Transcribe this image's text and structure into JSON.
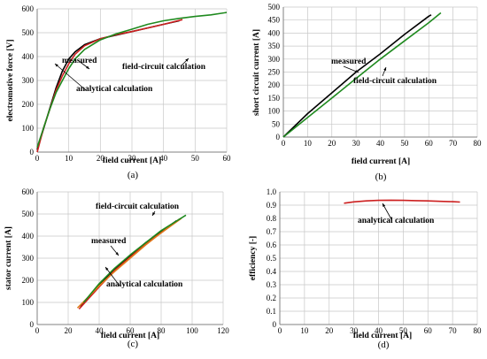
{
  "charts": [
    {
      "id": "a",
      "type": "line",
      "caption": "(a)",
      "xlabel": "field current [A]",
      "ylabel": "electromotive force [V]",
      "xlim": [
        0,
        60
      ],
      "ylim": [
        0,
        600
      ],
      "xticks": [
        0,
        10,
        20,
        30,
        40,
        50,
        60
      ],
      "yticks": [
        0,
        100,
        200,
        300,
        400,
        500,
        600
      ],
      "grid": true,
      "series": [
        {
          "color": "#000000",
          "x": [
            0,
            3,
            6,
            8,
            10,
            12,
            15,
            20,
            25,
            30,
            35,
            40,
            45
          ],
          "y": [
            10,
            140,
            270,
            340,
            390,
            420,
            450,
            475,
            490,
            505,
            520,
            535,
            550
          ]
        },
        {
          "color": "#cc1f1f",
          "x": [
            0,
            2,
            4,
            6,
            8,
            10,
            12,
            15,
            20,
            25,
            30,
            35,
            40,
            46
          ],
          "y": [
            0,
            100,
            180,
            260,
            320,
            370,
            410,
            445,
            475,
            492,
            505,
            520,
            535,
            555
          ]
        },
        {
          "color": "#1f8a1f",
          "x": [
            0,
            2,
            4,
            6,
            8,
            10,
            12,
            15,
            20,
            25,
            30,
            35,
            40,
            45,
            50,
            55,
            60
          ],
          "y": [
            20,
            100,
            180,
            250,
            300,
            350,
            390,
            430,
            470,
            495,
            515,
            535,
            550,
            560,
            568,
            575,
            585
          ]
        }
      ],
      "annotations": [
        {
          "text": "measured"
        },
        {
          "text": "field-circuit  calculation"
        },
        {
          "text": "analytical calculation"
        }
      ]
    },
    {
      "id": "b",
      "type": "line",
      "caption": "(b)",
      "xlabel": "field current [A]",
      "ylabel": "short circuit  current [A]",
      "xlim": [
        0,
        80
      ],
      "ylim": [
        0,
        500
      ],
      "xticks": [
        0,
        10,
        20,
        30,
        40,
        50,
        60,
        70,
        80
      ],
      "yticks": [
        0,
        50,
        100,
        150,
        200,
        250,
        300,
        350,
        400,
        450,
        500
      ],
      "grid": true,
      "series": [
        {
          "color": "#000000",
          "x": [
            0,
            10,
            20,
            30,
            40,
            50,
            60,
            61
          ],
          "y": [
            0,
            90,
            170,
            250,
            320,
            395,
            465,
            470
          ]
        },
        {
          "color": "#1f8a1f",
          "x": [
            0,
            10,
            20,
            30,
            40,
            50,
            60,
            65
          ],
          "y": [
            0,
            75,
            150,
            225,
            300,
            370,
            440,
            478
          ]
        }
      ],
      "annotations": [
        {
          "text": "measured"
        },
        {
          "text": "field-circuit calculation"
        }
      ]
    },
    {
      "id": "c",
      "type": "line",
      "caption": "(c)",
      "xlabel": "field current [A]",
      "ylabel": "stator current [A]",
      "xlim": [
        0,
        120
      ],
      "ylim": [
        0,
        600
      ],
      "xticks": [
        0,
        20,
        40,
        60,
        80,
        100,
        120
      ],
      "yticks": [
        0,
        100,
        200,
        300,
        400,
        500,
        600
      ],
      "grid": true,
      "series": [
        {
          "color": "#000000",
          "x": [
            28,
            40,
            50,
            60,
            70,
            80,
            90
          ],
          "y": [
            80,
            180,
            250,
            310,
            370,
            420,
            470
          ]
        },
        {
          "color": "#cc1f1f",
          "x": [
            27,
            40,
            50,
            60,
            70,
            80,
            92
          ],
          "y": [
            70,
            170,
            245,
            305,
            365,
            415,
            478
          ]
        },
        {
          "color": "#e07a1a",
          "x": [
            26,
            40,
            50,
            60,
            70,
            80,
            93
          ],
          "y": [
            75,
            175,
            240,
            300,
            360,
            415,
            480
          ]
        },
        {
          "color": "#1f8a1f",
          "x": [
            30,
            40,
            50,
            60,
            70,
            80,
            96
          ],
          "y": [
            100,
            185,
            255,
            315,
            370,
            425,
            495
          ]
        }
      ],
      "annotations": [
        {
          "text": "field-circuit  calculation"
        },
        {
          "text": "measured"
        },
        {
          "text": "analytical calculation"
        }
      ]
    },
    {
      "id": "d",
      "type": "line",
      "caption": "(d)",
      "xlabel": "field current [A]",
      "ylabel": "efficiency [-]",
      "xlim": [
        0,
        80
      ],
      "ylim": [
        0,
        1
      ],
      "xticks": [
        0,
        10,
        20,
        30,
        40,
        50,
        60,
        70,
        80
      ],
      "yticks": [
        0,
        0.1,
        0.2,
        0.3,
        0.4,
        0.5,
        0.6,
        0.7,
        0.8,
        0.9,
        1
      ],
      "yticklabels": [
        "0",
        "0.1",
        "0.2",
        "0.3",
        "0.4",
        "0.5",
        "0.6",
        "0.7",
        "0.8",
        "0.9",
        "1.0"
      ],
      "grid": true,
      "series": [
        {
          "color": "#cc1f1f",
          "x": [
            26,
            30,
            35,
            40,
            45,
            50,
            55,
            60,
            65,
            70,
            73
          ],
          "y": [
            0.915,
            0.925,
            0.932,
            0.936,
            0.937,
            0.936,
            0.934,
            0.932,
            0.929,
            0.926,
            0.923
          ]
        }
      ],
      "annotations": [
        {
          "text": "analytical calculation"
        }
      ]
    }
  ]
}
